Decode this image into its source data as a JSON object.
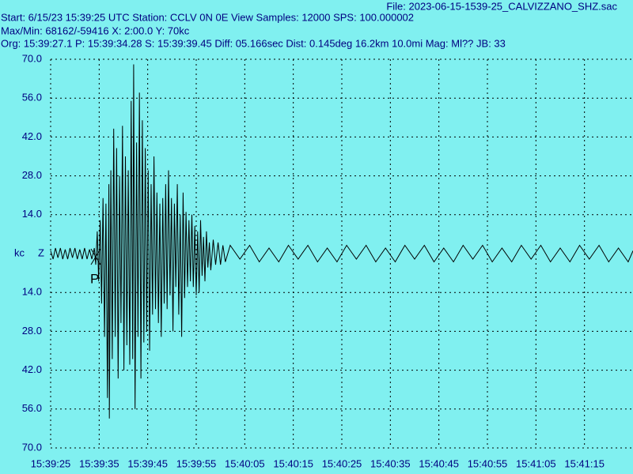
{
  "chart_data": {
    "type": "line",
    "file": "File: 2023-06-15-1539-25_CALVIZZANO_SHZ.sac",
    "info": [
      "Start: 6/15/23 15:39:25 UTC Station: CCLV 0N 0E View Samples: 12000  SPS: 100.000002",
      "Max/Min: 68162/-59416 X: 2:00.0 Y: 70kc",
      "Org: 15:39:27.1 P: 15:39:34.28 S: 15:39:39.45 Diff: 05.166sec Dist: 0.145deg 16.2km 10.0mi  Mag: Ml?? JB: 33"
    ],
    "y_label": "kc",
    "channel": "Z",
    "pick": "P",
    "x": [
      0,
      0.5,
      1,
      1.5,
      2,
      2.5,
      3,
      3.5,
      4,
      4.5,
      5,
      5.5,
      6,
      6.5,
      7,
      7.5,
      8,
      8.5,
      9,
      9.3,
      9.6,
      9.9,
      10.2,
      10.5,
      10.8,
      11.1,
      11.4,
      11.7,
      12,
      12.1,
      12.4,
      12.7,
      13,
      13.3,
      13.6,
      13.9,
      14.2,
      14.5,
      14.8,
      15.1,
      15.4,
      15.7,
      16,
      16.3,
      16.6,
      16.9,
      17.1,
      17.4,
      17.7,
      18,
      18.3,
      18.6,
      18.9,
      19.2,
      19.5,
      19.8,
      20.1,
      20.4,
      20.7,
      21,
      21.3,
      21.6,
      21.9,
      22.2,
      22.5,
      22.8,
      23.1,
      23.4,
      23.7,
      24,
      24.3,
      24.6,
      24.9,
      25.2,
      25.5,
      25.8,
      26.1,
      26.4,
      26.7,
      27,
      27.3,
      27.6,
      27.9,
      28.2,
      28.5,
      28.8,
      29.1,
      29.4,
      29.7,
      30,
      30.3,
      30.6,
      30.9,
      31.2,
      31.5,
      31.8,
      32.1,
      32.4,
      32.7,
      33,
      33.5,
      34,
      34.5,
      35,
      35.5,
      36,
      37,
      39,
      41,
      43,
      45,
      47,
      49,
      51,
      53,
      55,
      57,
      59,
      61,
      63,
      65,
      67,
      69,
      71,
      73,
      75,
      77,
      79,
      81,
      83,
      85,
      87,
      89,
      91,
      93,
      95,
      97,
      99,
      101,
      103,
      105,
      107,
      109,
      111,
      113,
      115,
      117,
      119,
      120
    ],
    "series": [
      {
        "color": "#000000",
        "values": [
          1,
          -2,
          2,
          -1.5,
          2,
          -2,
          1.5,
          -2,
          2,
          -1.5,
          2,
          -2,
          1.5,
          -2,
          2,
          -2,
          1.5,
          -2,
          2,
          -4,
          8,
          -10,
          12,
          -18,
          20,
          -30,
          18,
          -52,
          25,
          -59.416,
          30,
          -38,
          45,
          -30,
          38,
          -45,
          28,
          -25,
          46,
          -42,
          35,
          -33,
          30,
          -40,
          55,
          -38,
          68.162,
          -56,
          40,
          -30,
          58,
          -45,
          48,
          -32,
          38,
          -28,
          30,
          -35,
          25,
          -22,
          35,
          -20,
          22,
          -25,
          18,
          -30,
          20,
          -18,
          25,
          -20,
          30,
          -15,
          20,
          -28,
          18,
          -12,
          25,
          -22,
          14,
          -30,
          22,
          -16,
          15,
          -12,
          12,
          -10,
          14,
          -12,
          10,
          -15,
          8,
          -14,
          12,
          -8,
          6,
          -10,
          8,
          -5,
          4,
          -6,
          5,
          -4,
          4,
          -4,
          3,
          -3,
          3,
          -2,
          3,
          -3,
          2,
          -3,
          3,
          -2,
          3,
          -3,
          2,
          -3,
          3,
          -2,
          3,
          -3,
          2,
          -3,
          3,
          -2,
          3,
          -3,
          2,
          -3,
          3,
          -2,
          3,
          -3,
          2,
          -3,
          3,
          -2,
          3,
          -3,
          2,
          -3,
          3,
          -2,
          3,
          -3,
          2,
          -3,
          1
        ]
      }
    ],
    "xlim": [
      0,
      120
    ],
    "xticks": [
      {
        "value": 0,
        "label": "15:39:25"
      },
      {
        "value": 10,
        "label": "15:39:35"
      },
      {
        "value": 20,
        "label": "15:39:45"
      },
      {
        "value": 30,
        "label": "15:39:55"
      },
      {
        "value": 40,
        "label": "15:40:05"
      },
      {
        "value": 50,
        "label": "15:40:15"
      },
      {
        "value": 60,
        "label": "15:40:25"
      },
      {
        "value": 70,
        "label": "15:40:35"
      },
      {
        "value": 80,
        "label": "15:40:45"
      },
      {
        "value": 90,
        "label": "15:40:55"
      },
      {
        "value": 100,
        "label": "15:41:05"
      },
      {
        "value": 110,
        "label": "15:41:15"
      }
    ],
    "ylim": [
      -70,
      70
    ],
    "yticks": [
      {
        "value": 70,
        "label": "70.0"
      },
      {
        "value": 56,
        "label": "56.0"
      },
      {
        "value": 42,
        "label": "42.0"
      },
      {
        "value": 28,
        "label": "28.0"
      },
      {
        "value": 14,
        "label": "14.0"
      },
      {
        "value": -14,
        "label": "14.0"
      },
      {
        "value": -28,
        "label": "28.0"
      },
      {
        "value": -42,
        "label": "42.0"
      },
      {
        "value": -56,
        "label": "56.0"
      },
      {
        "value": -70,
        "label": "70.0"
      }
    ],
    "grid": true
  }
}
